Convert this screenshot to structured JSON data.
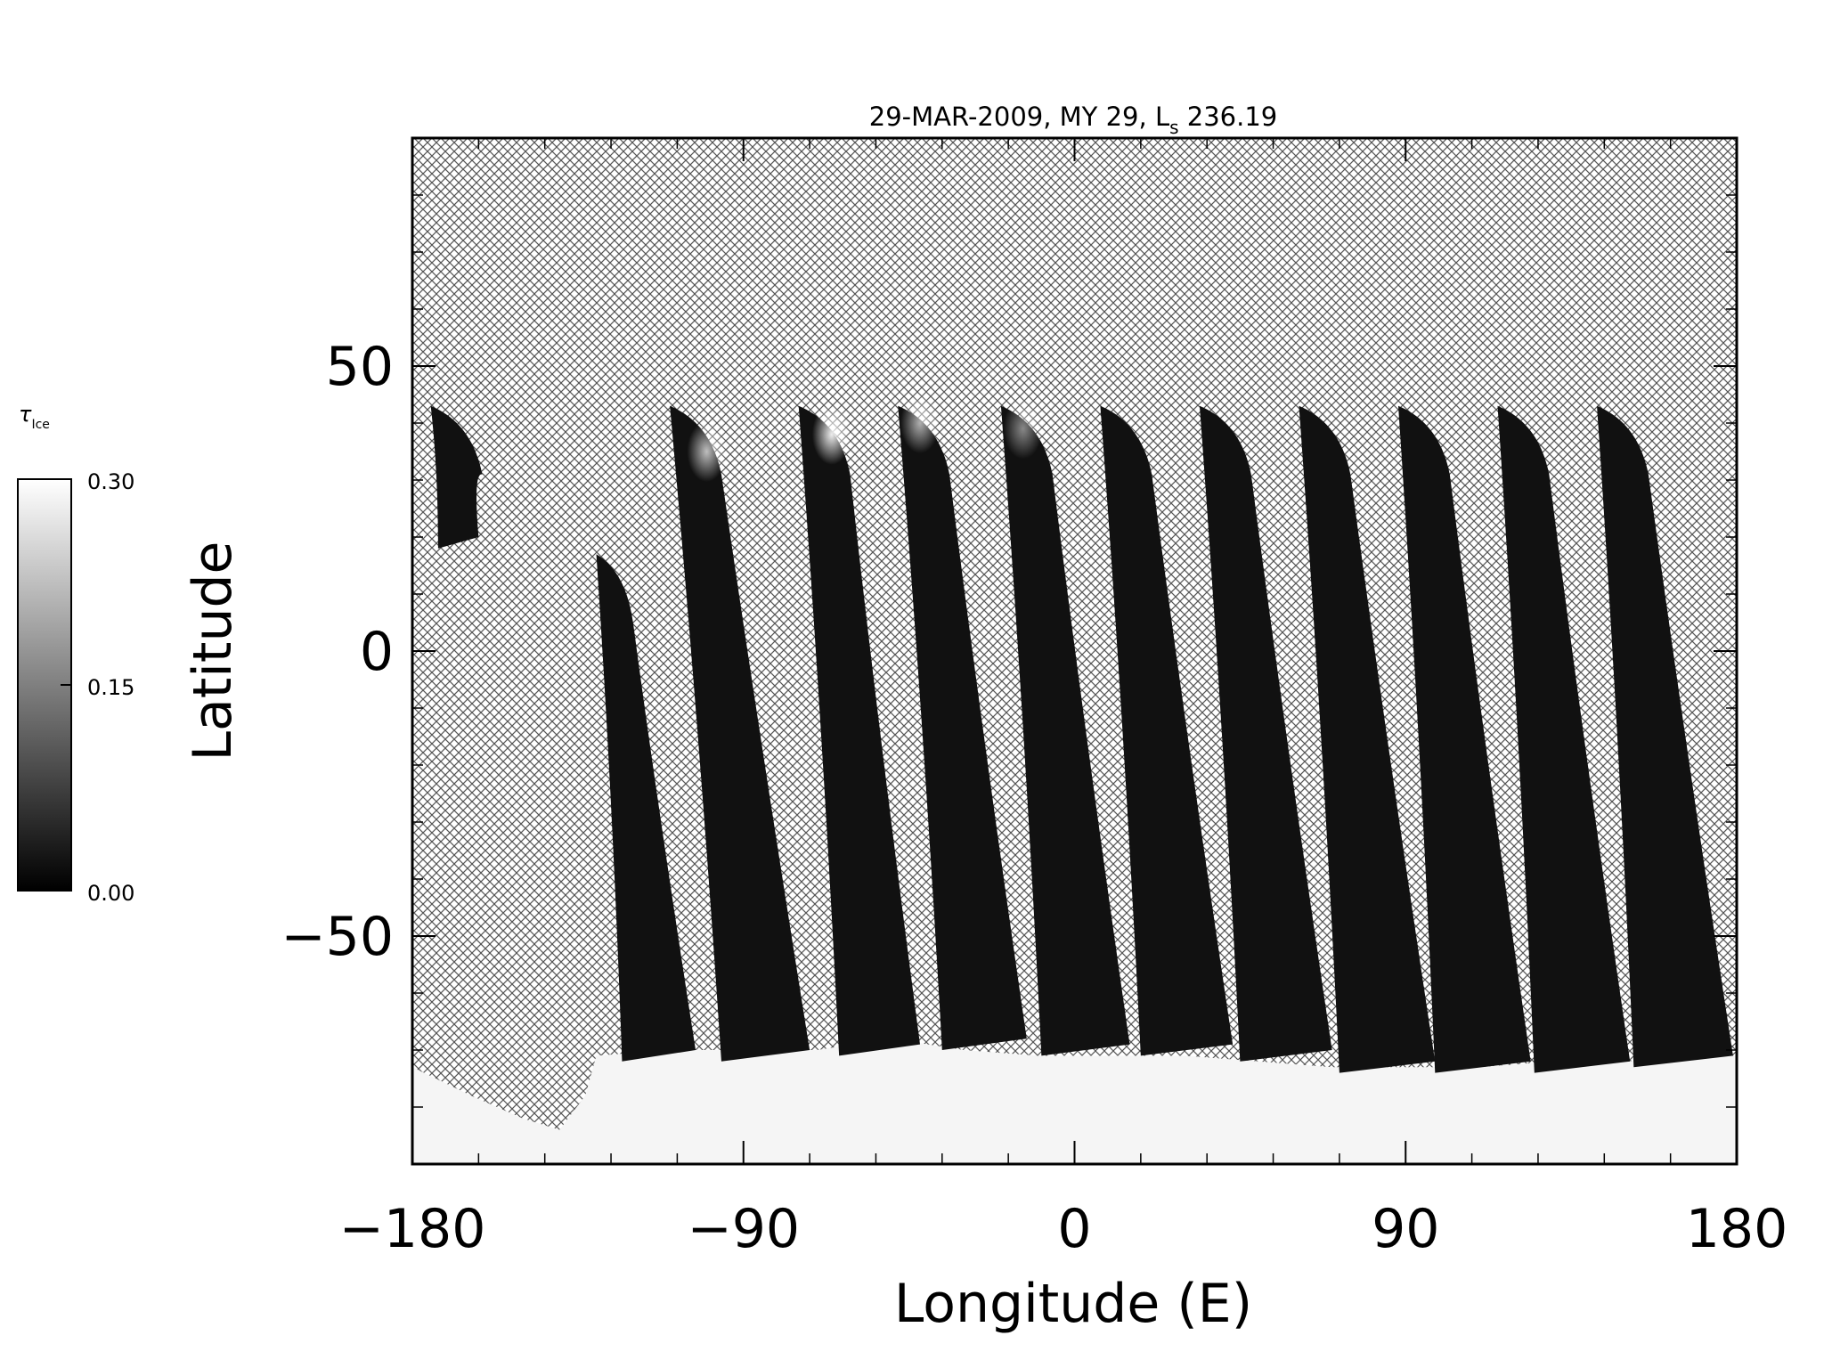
{
  "chart_data": {
    "type": "heatmap",
    "title": "29-MAR-2009, MY 29,  L",
    "title_sub": "s",
    "title_tail": " 236.19",
    "xlabel": "Longitude (E)",
    "ylabel": "Latitude",
    "xlim": [
      -180,
      180
    ],
    "ylim": [
      -90,
      90
    ],
    "x_ticks": [
      -180,
      -90,
      0,
      90,
      180
    ],
    "x_tick_labels": [
      "−180",
      "−90",
      "0",
      "90",
      "180"
    ],
    "y_ticks": [
      -50,
      0,
      50
    ],
    "y_tick_labels": [
      "−50",
      "0",
      "50"
    ],
    "no_data_pattern": "crosshatch",
    "colorbar": {
      "label": "τ",
      "label_sub": "Ice",
      "min": 0.0,
      "max": 0.3,
      "ticks": [
        "0.00",
        "0.15",
        "0.30"
      ],
      "colormap": "grayscale",
      "low_color": "#000000",
      "high_color": "#ffffff"
    },
    "swaths": [
      {
        "n_lon": -175,
        "n_lat": 43,
        "n_width": 14,
        "s_lat": 20,
        "s_lon": -173,
        "s_width": 11
      },
      {
        "n_lon": -130,
        "n_lat": 17,
        "n_width": 10,
        "s_lat": -70,
        "s_lon": -123,
        "s_width": 20
      },
      {
        "n_lon": -110,
        "n_lat": 43,
        "n_width": 14,
        "s_lat": -70,
        "s_lon": -96,
        "s_width": 24
      },
      {
        "n_lon": -75,
        "n_lat": 43,
        "n_width": 14,
        "s_lat": -69,
        "s_lon": -64,
        "s_width": 22
      },
      {
        "n_lon": -48,
        "n_lat": 43,
        "n_width": 14,
        "s_lat": -68,
        "s_lon": -36,
        "s_width": 23
      },
      {
        "n_lon": -20,
        "n_lat": 43,
        "n_width": 14,
        "s_lat": -69,
        "s_lon": -9,
        "s_width": 24
      },
      {
        "n_lon": 7,
        "n_lat": 43,
        "n_width": 14,
        "s_lat": -69,
        "s_lon": 18,
        "s_width": 25
      },
      {
        "n_lon": 34,
        "n_lat": 43,
        "n_width": 14,
        "s_lat": -70,
        "s_lon": 45,
        "s_width": 25
      },
      {
        "n_lon": 61,
        "n_lat": 43,
        "n_width": 14,
        "s_lat": -72,
        "s_lon": 72,
        "s_width": 26
      },
      {
        "n_lon": 88,
        "n_lat": 43,
        "n_width": 14,
        "s_lat": -72,
        "s_lon": 98,
        "s_width": 26
      },
      {
        "n_lon": 115,
        "n_lat": 43,
        "n_width": 14,
        "s_lat": -72,
        "s_lon": 125,
        "s_width": 26
      },
      {
        "n_lon": 142,
        "n_lat": 43,
        "n_width": 14,
        "s_lat": -71,
        "s_lon": 152,
        "s_width": 27
      }
    ],
    "bright_patches": [
      {
        "lon": -100,
        "lat": 35,
        "value": 0.22
      },
      {
        "lon": -66,
        "lat": 38,
        "value": 0.28
      },
      {
        "lon": -42,
        "lat": 40,
        "value": 0.2
      },
      {
        "lon": -14,
        "lat": 39,
        "value": 0.15
      }
    ],
    "ice_boundary": [
      [
        -180,
        -73
      ],
      [
        -164,
        -78
      ],
      [
        -150,
        -82
      ],
      [
        -140,
        -84
      ],
      [
        -133,
        -78
      ],
      [
        -130,
        -71
      ],
      [
        -110,
        -70
      ],
      [
        -90,
        -70
      ],
      [
        -70,
        -70
      ],
      [
        -50,
        -68
      ],
      [
        -30,
        -70
      ],
      [
        -10,
        -71
      ],
      [
        10,
        -71
      ],
      [
        30,
        -71
      ],
      [
        50,
        -72
      ],
      [
        70,
        -73
      ],
      [
        90,
        -73
      ],
      [
        110,
        -73
      ],
      [
        130,
        -72
      ],
      [
        150,
        -72
      ],
      [
        170,
        -71
      ],
      [
        180,
        -71
      ]
    ]
  }
}
